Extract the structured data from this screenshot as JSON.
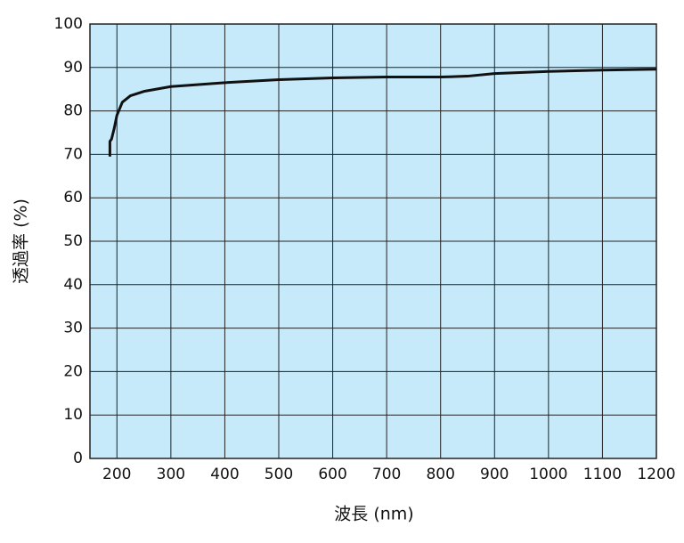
{
  "chart_data": {
    "type": "line",
    "x_label": "波長 (nm)",
    "y_label": "透過率 (%)",
    "x": [
      187,
      187,
      190,
      195,
      200,
      210,
      225,
      250,
      300,
      400,
      500,
      600,
      700,
      800,
      850,
      900,
      1000,
      1100,
      1200
    ],
    "series": [
      {
        "color": "#111111",
        "values": [
          69.5,
          73,
          73.5,
          76,
          79,
          82,
          83.5,
          84.5,
          85.6,
          86.5,
          87.2,
          87.6,
          87.8,
          87.8,
          88.0,
          88.6,
          89.1,
          89.4,
          89.6
        ]
      }
    ],
    "xlim": [
      150,
      1200
    ],
    "xticks": [
      200,
      300,
      400,
      500,
      600,
      700,
      800,
      900,
      1000,
      1100,
      1200
    ],
    "ylim": [
      0,
      100
    ],
    "yticks": [
      0,
      10,
      20,
      30,
      40,
      50,
      60,
      70,
      80,
      90,
      100
    ],
    "grid": true,
    "background": "#c6eafa"
  }
}
